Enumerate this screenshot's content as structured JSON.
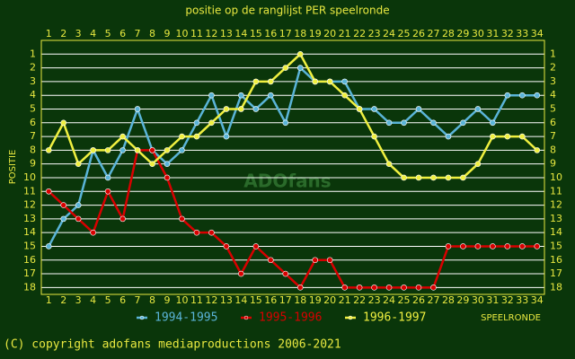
{
  "chart_data": {
    "type": "line",
    "title": "positie op de ranglijst PER speelronde",
    "ylabel": "POSITIE",
    "xlabel": "SPEELRONDE",
    "watermark": "ADOfans",
    "footer": "(C) copyright adofans mediaproductions 2006-2021",
    "x": [
      1,
      2,
      3,
      4,
      5,
      6,
      7,
      8,
      9,
      10,
      11,
      12,
      13,
      14,
      15,
      16,
      17,
      18,
      19,
      20,
      21,
      22,
      23,
      24,
      25,
      26,
      27,
      28,
      29,
      30,
      31,
      32,
      33,
      34
    ],
    "xlim": [
      0.5,
      34.5
    ],
    "xticks": [
      1,
      2,
      3,
      4,
      5,
      6,
      7,
      8,
      9,
      10,
      11,
      12,
      13,
      14,
      15,
      16,
      17,
      18,
      19,
      20,
      21,
      22,
      23,
      24,
      25,
      26,
      27,
      28,
      29,
      30,
      31,
      32,
      33,
      34
    ],
    "ylim": [
      0,
      18.5
    ],
    "yticks": [
      1,
      2,
      3,
      4,
      5,
      6,
      7,
      8,
      9,
      10,
      11,
      12,
      13,
      14,
      15,
      16,
      17,
      18
    ],
    "y_inverted": true,
    "grid": true,
    "series": [
      {
        "name": "1994-1995",
        "color": "#5ab4d8",
        "values": [
          15,
          13,
          12,
          8,
          10,
          8,
          5,
          8,
          9,
          8,
          6,
          4,
          7,
          4,
          5,
          4,
          6,
          2,
          3,
          3,
          3,
          5,
          5,
          6,
          6,
          5,
          6,
          7,
          6,
          5,
          6,
          4,
          4,
          4
        ]
      },
      {
        "name": "1995-1996",
        "color": "#d80000",
        "values": [
          11,
          12,
          13,
          14,
          11,
          13,
          8,
          8,
          10,
          13,
          14,
          14,
          15,
          17,
          15,
          16,
          17,
          18,
          16,
          16,
          18,
          18,
          18,
          18,
          18,
          18,
          18,
          15,
          15,
          15,
          15,
          15,
          15,
          15
        ]
      },
      {
        "name": "1996-1997",
        "color": "#f0f040",
        "values": [
          8,
          6,
          9,
          8,
          8,
          7,
          8,
          9,
          8,
          7,
          7,
          6,
          5,
          5,
          3,
          3,
          2,
          1,
          3,
          3,
          4,
          5,
          7,
          9,
          10,
          10,
          10,
          10,
          10,
          9,
          7,
          7,
          7,
          8
        ]
      }
    ]
  }
}
